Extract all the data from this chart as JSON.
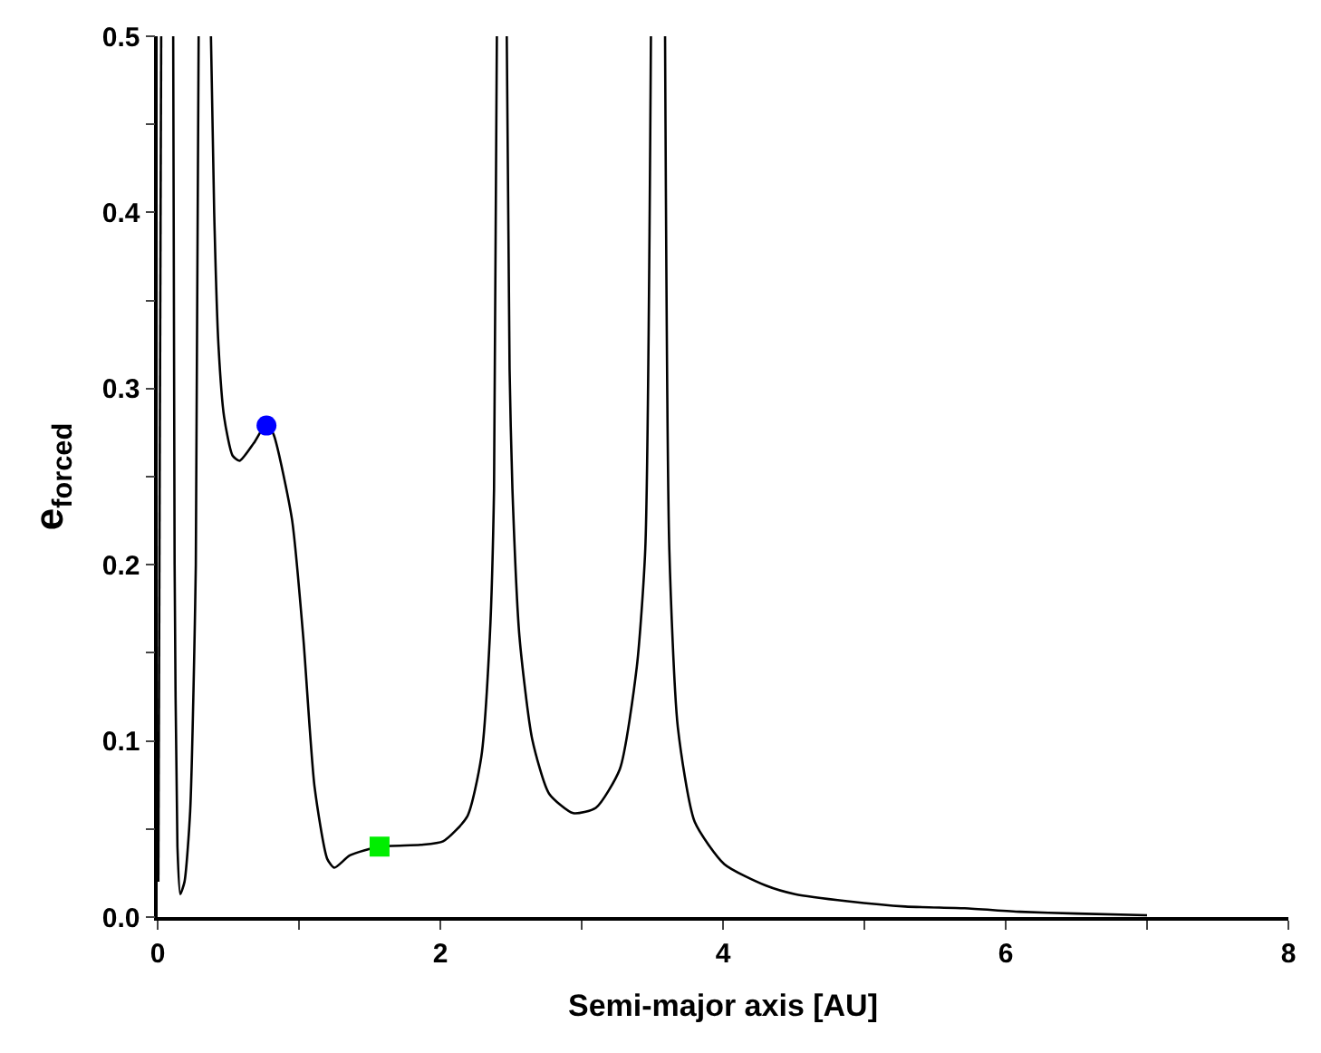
{
  "chart_data": {
    "type": "line",
    "xlabel": "Semi-major axis [AU]",
    "ylabel": "e$_{forced}$",
    "xlim": [
      0,
      8
    ],
    "ylim": [
      0,
      0.5
    ],
    "xticks": [
      0,
      {
        "value": 1,
        "label": null
      },
      2,
      {
        "value": 3,
        "label": null
      },
      4,
      {
        "value": 5,
        "label": null
      },
      6,
      {
        "value": 7,
        "label": null
      },
      8
    ],
    "yticks": [
      {
        "value": 0,
        "label": "0.0"
      },
      {
        "value": 0.05,
        "label": null
      },
      0.1,
      {
        "value": 0.15,
        "label": null
      },
      0.2,
      {
        "value": 0.25,
        "label": null
      },
      0.3,
      {
        "value": 0.35,
        "label": null
      },
      0.4,
      {
        "value": 0.45,
        "label": null
      },
      0.5
    ],
    "series": [
      {
        "color": "#000000",
        "marker": "none",
        "line_style": "solid",
        "x": [
          0.005,
          0.025,
          null,
          0.11,
          0.12,
          0.14,
          0.16,
          0.19,
          0.23,
          0.27,
          0.29,
          null,
          0.377,
          0.4,
          0.43,
          0.47,
          0.53,
          0.58,
          0.68,
          0.77,
          0.82,
          0.95,
          1.03,
          1.11,
          1.2,
          1.25,
          1.36,
          1.57,
          1.86,
          2.02,
          2.19,
          2.29,
          2.35,
          2.38,
          2.4,
          null,
          2.47,
          2.49,
          2.51,
          2.56,
          2.65,
          2.77,
          2.94,
          3.1,
          3.27,
          3.39,
          3.45,
          3.49,
          null,
          3.59,
          3.62,
          3.68,
          3.8,
          4.01,
          4.3,
          4.51,
          4.88,
          5.29,
          5.71,
          6.1,
          6.5,
          7.0
        ],
        "values": [
          0.02,
          0.5,
          null,
          0.5,
          0.2,
          0.04,
          0.013,
          0.02,
          0.06,
          0.2,
          0.5,
          null,
          0.5,
          0.4,
          0.325,
          0.284,
          0.262,
          0.259,
          0.269,
          0.28,
          0.274,
          0.226,
          0.159,
          0.074,
          0.033,
          0.028,
          0.035,
          0.04,
          0.041,
          0.043,
          0.057,
          0.091,
          0.159,
          0.243,
          0.5,
          null,
          0.5,
          0.311,
          0.243,
          0.159,
          0.101,
          0.07,
          0.059,
          0.062,
          0.084,
          0.142,
          0.209,
          0.5,
          null,
          0.5,
          0.209,
          0.108,
          0.054,
          0.03,
          0.018,
          0.013,
          0.009,
          0.006,
          0.005,
          0.003,
          0.002,
          0.001
        ]
      },
      {
        "type": "scatter",
        "color": "#0000ff",
        "marker": "circle",
        "x": [
          0.77
        ],
        "values": [
          0.279
        ]
      },
      {
        "type": "scatter",
        "color": "#00ee00",
        "marker": "square",
        "x": [
          1.57
        ],
        "values": [
          0.04
        ]
      }
    ]
  }
}
